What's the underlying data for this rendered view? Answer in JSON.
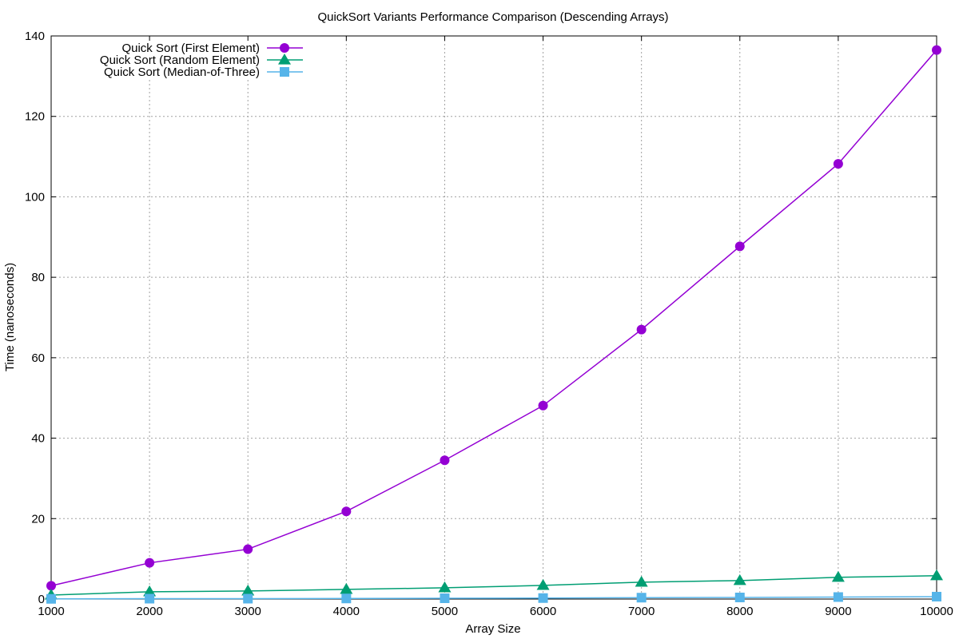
{
  "chart_data": {
    "type": "line",
    "title": "QuickSort Variants Performance Comparison (Descending Arrays)",
    "xlabel": "Array Size",
    "ylabel": "Time (nanoseconds)",
    "xlim": [
      1000,
      10000
    ],
    "ylim": [
      0,
      140
    ],
    "xticks": [
      1000,
      2000,
      3000,
      4000,
      5000,
      6000,
      7000,
      8000,
      9000,
      10000
    ],
    "yticks": [
      0,
      20,
      40,
      60,
      80,
      100,
      120,
      140
    ],
    "grid": true,
    "legend_position": "top-left",
    "x": [
      1000,
      2000,
      3000,
      4000,
      5000,
      6000,
      7000,
      8000,
      9000,
      10000
    ],
    "series": [
      {
        "name": "Quick Sort (First Element)",
        "color": "#9400d3",
        "marker": "circle",
        "values": [
          3.3,
          9.0,
          12.4,
          21.8,
          34.5,
          48.1,
          67.0,
          87.7,
          108.2,
          136.5
        ]
      },
      {
        "name": "Quick Sort (Random Element)",
        "color": "#009e73",
        "marker": "triangle",
        "values": [
          1.0,
          1.8,
          2.0,
          2.4,
          2.8,
          3.4,
          4.2,
          4.6,
          5.4,
          5.8
        ]
      },
      {
        "name": "Quick Sort (Median-of-Three)",
        "color": "#56b4e9",
        "marker": "square",
        "values": [
          0.05,
          0.1,
          0.1,
          0.15,
          0.2,
          0.25,
          0.35,
          0.4,
          0.5,
          0.6
        ]
      }
    ]
  }
}
